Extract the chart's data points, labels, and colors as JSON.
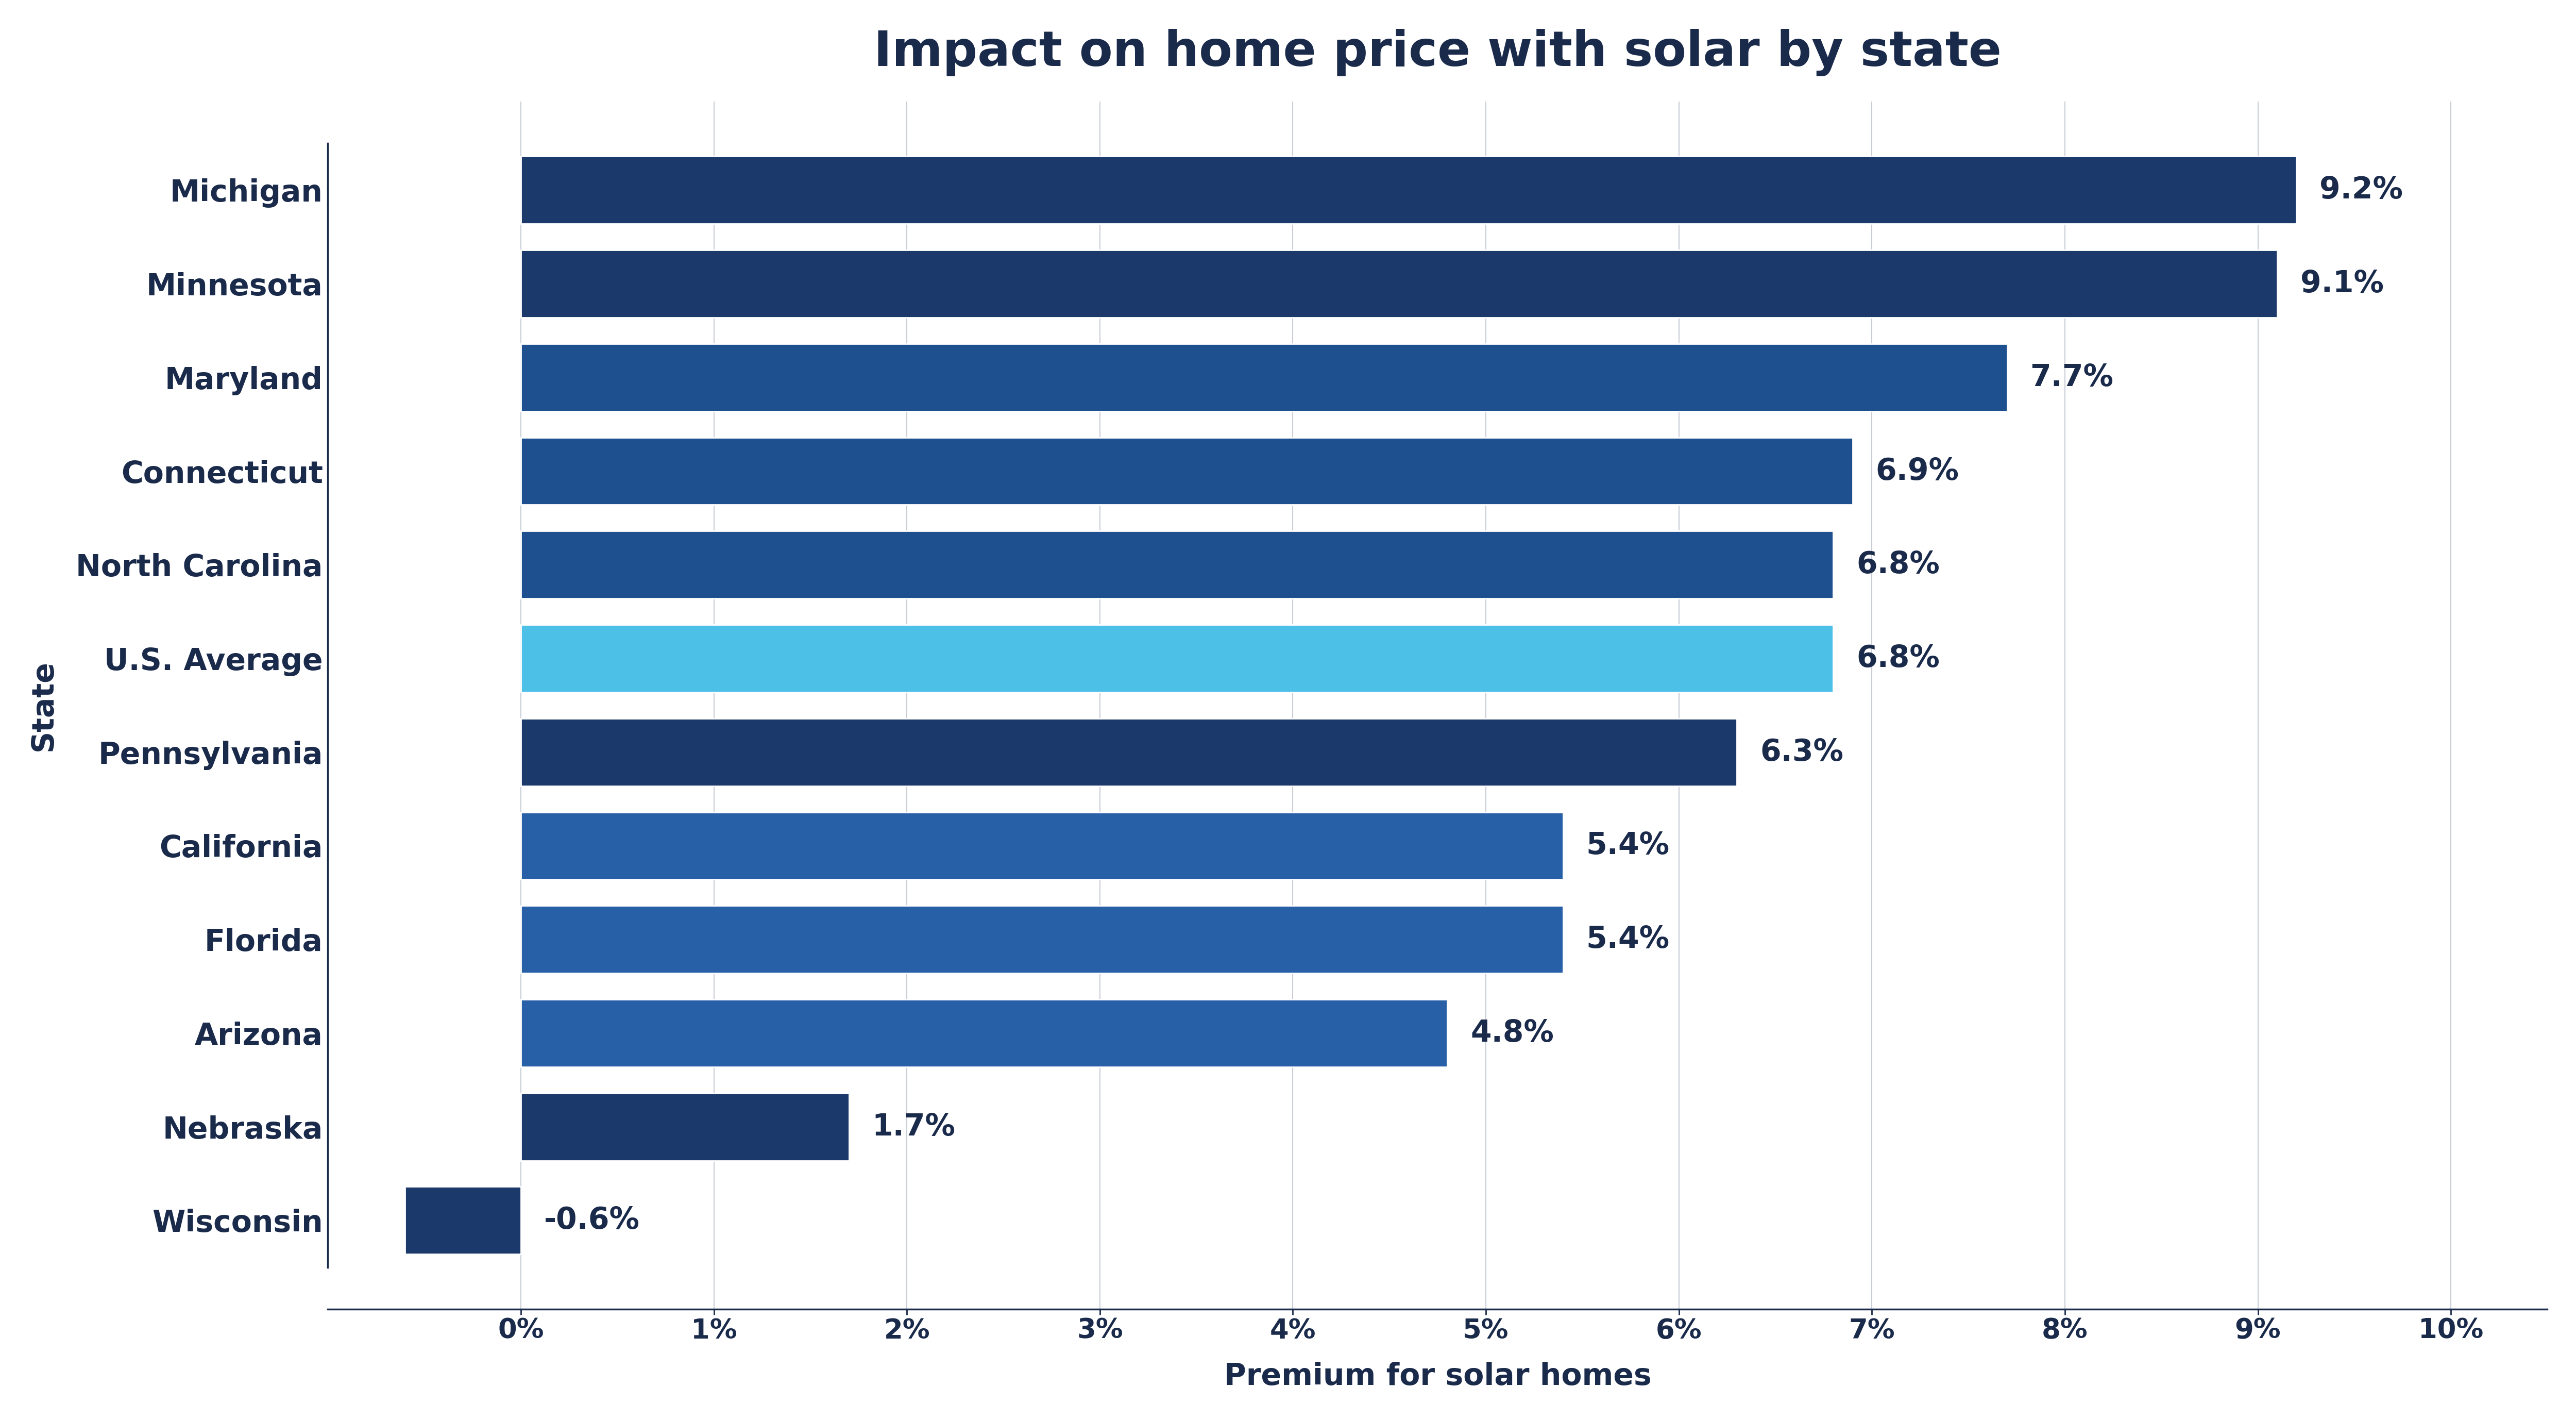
{
  "title": "Impact on home price with solar by state",
  "xlabel": "Premium for solar homes",
  "ylabel": "State",
  "categories": [
    "Michigan",
    "Minnesota",
    "Maryland",
    "Connecticut",
    "North Carolina",
    "U.S. Average",
    "Pennsylvania",
    "California",
    "Florida",
    "Arizona",
    "Nebraska",
    "Wisconsin"
  ],
  "values": [
    9.2,
    9.1,
    7.7,
    6.9,
    6.8,
    6.8,
    6.3,
    5.4,
    5.4,
    4.8,
    1.7,
    -0.6
  ],
  "bar_colors": [
    "#1b3a6b",
    "#1b3a6b",
    "#1e4f8e",
    "#1e4f8e",
    "#1e4f8e",
    "#4dc0e8",
    "#1b3a6b",
    "#2860a8",
    "#2860a8",
    "#2860a8",
    "#1b3a6b",
    "#1b3a6b"
  ],
  "label_texts": [
    "9.2%",
    "9.1%",
    "7.7%",
    "6.9%",
    "6.8%",
    "6.8%",
    "6.3%",
    "5.4%",
    "5.4%",
    "4.8%",
    "1.7%",
    "-0.6%"
  ],
  "xlim": [
    -1.0,
    10.5
  ],
  "xticks": [
    0,
    1,
    2,
    3,
    4,
    5,
    6,
    7,
    8,
    9,
    10
  ],
  "xticklabels": [
    "0%",
    "1%",
    "2%",
    "3%",
    "4%",
    "5%",
    "6%",
    "7%",
    "8%",
    "9%",
    "10%"
  ],
  "title_fontsize": 68,
  "axis_label_fontsize": 42,
  "tick_fontsize": 38,
  "bar_label_fontsize": 42,
  "ytick_fontsize": 42,
  "background_color": "#ffffff",
  "grid_color": "#c8cdd6",
  "text_color": "#1a2a4a",
  "bar_height": 0.72
}
